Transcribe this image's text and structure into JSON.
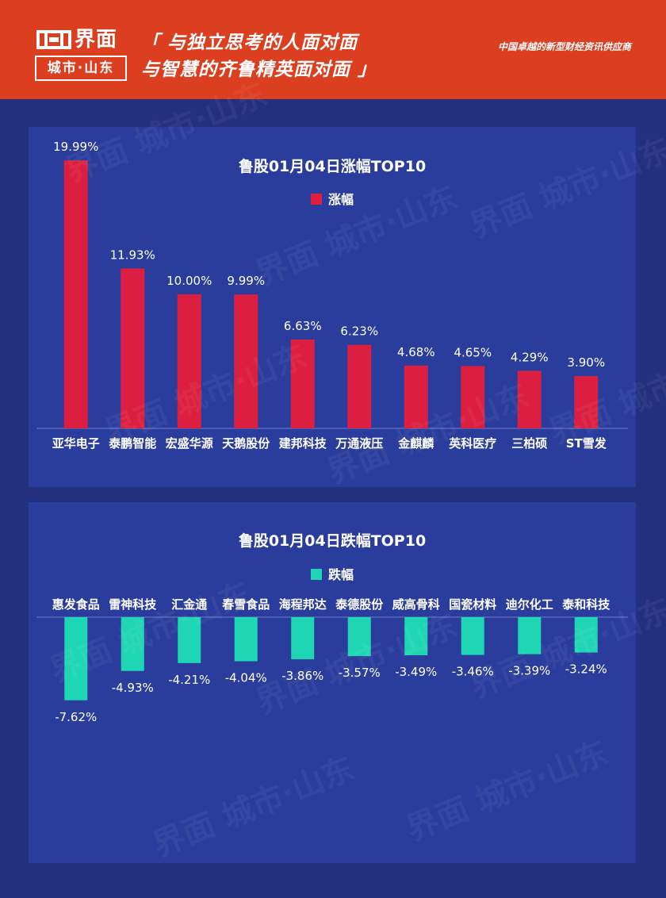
{
  "header": {
    "logo_name": "界面",
    "logo_sub": "城市·山东",
    "slogan_line1": "「 与独立思考的人面对面",
    "slogan_line2": "与智慧的齐鲁精英面对面 」",
    "tagline": "中国卓越的新型财经资讯供应商"
  },
  "watermark": {
    "text": "界面 城市·山东"
  },
  "chart_data": [
    {
      "type": "bar",
      "title": "鲁股01月04日涨幅TOP10",
      "series": [
        {
          "name": "涨幅",
          "color": "#dc1f41",
          "values": [
            19.99,
            11.93,
            10.0,
            9.99,
            6.63,
            6.23,
            4.68,
            4.65,
            4.29,
            3.9
          ],
          "labels": [
            "19.99%",
            "11.93%",
            "10.00%",
            "9.99%",
            "6.63%",
            "6.23%",
            "4.68%",
            "4.65%",
            "4.29%",
            "3.90%"
          ]
        }
      ],
      "categories": [
        "亚华电子",
        "泰鹏智能",
        "宏盛华源",
        "天鹅股份",
        "建邦科技",
        "万通液压",
        "金麒麟",
        "英科医疗",
        "三柏硕",
        "ST雪发"
      ],
      "xlabel": "",
      "ylabel": "",
      "ylim": [
        0,
        20
      ],
      "grid": false,
      "legend": "top-center"
    },
    {
      "type": "bar",
      "title": "鲁股01月04日跌幅TOP10",
      "series": [
        {
          "name": "跌幅",
          "color": "#1fd6b4",
          "values": [
            -7.62,
            -4.93,
            -4.21,
            -4.04,
            -3.86,
            -3.57,
            -3.49,
            -3.46,
            -3.39,
            -3.24
          ],
          "labels": [
            "-7.62%",
            "-4.93%",
            "-4.21%",
            "-4.04%",
            "-3.86%",
            "-3.57%",
            "-3.49%",
            "-3.46%",
            "-3.39%",
            "-3.24%"
          ]
        }
      ],
      "categories": [
        "惠发食品",
        "雷神科技",
        "汇金通",
        "春雪食品",
        "海程邦达",
        "泰德股份",
        "威高骨科",
        "国瓷材料",
        "迪尔化工",
        "泰和科技"
      ],
      "xlabel": "",
      "ylabel": "",
      "ylim": [
        -8,
        0
      ],
      "grid": false,
      "legend": "top-center"
    }
  ]
}
